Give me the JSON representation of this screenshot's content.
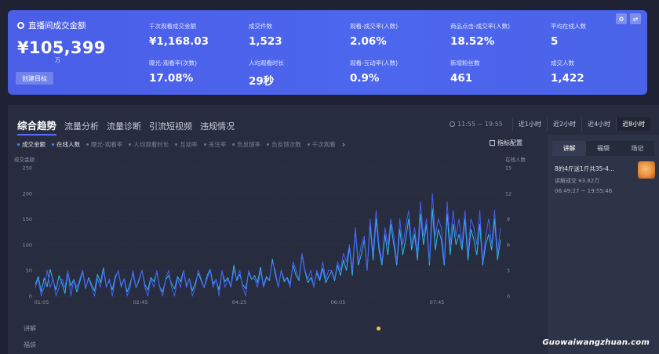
{
  "stats": {
    "main": {
      "label": "直播间成交金额",
      "value": "¥105,399",
      "unit": "万",
      "button": "创建目标"
    },
    "metrics": [
      {
        "label": "千次观看成交金额",
        "value": "¥1,168.03"
      },
      {
        "label": "成交件数",
        "value": "1,523"
      },
      {
        "label": "观看-成交率(人数)",
        "value": "2.06%"
      },
      {
        "label": "商品点击-成交率(人数)",
        "value": "18.52%"
      },
      {
        "label": "平均在线人数",
        "value": "5"
      },
      {
        "label": "曝光-观看率(次数)",
        "value": "17.08%"
      },
      {
        "label": "人均观看时长",
        "value": "29秒"
      },
      {
        "label": "观看-互动率(人数)",
        "value": "0.9%"
      },
      {
        "label": "新增粉丝数",
        "value": "461"
      },
      {
        "label": "成交人数",
        "value": "1,422"
      }
    ],
    "icons": [
      "gear-icon",
      "swap-icon"
    ]
  },
  "tabs": [
    "综合趋势",
    "流量分析",
    "流量诊断",
    "引流短视频",
    "违规情况"
  ],
  "time": {
    "range": "11:55 ~ 19:55",
    "segments": [
      "近1小时",
      "近2小时",
      "近4小时",
      "近8小时"
    ],
    "active": 3
  },
  "chips": [
    {
      "label": "成交金额",
      "on": true
    },
    {
      "label": "在线人数",
      "on": true
    },
    {
      "label": "曝光-观看率",
      "on": false
    },
    {
      "label": "人均观看时长",
      "on": false
    },
    {
      "label": "互动率",
      "on": false
    },
    {
      "label": "关注率",
      "on": false
    },
    {
      "label": "负反馈率",
      "on": false
    },
    {
      "label": "负反馈次数",
      "on": false
    },
    {
      "label": "千次观看",
      "on": false
    }
  ],
  "metric_config": "指标配置",
  "side": {
    "tabs": [
      "讲解",
      "福袋",
      "场记"
    ],
    "item": {
      "title": "8的4斤送1斤共35-4...",
      "gmv": "讲解成交 ¥3.82万",
      "time": "06:49:27 ~ 19:55:48"
    }
  },
  "bottom_labels": [
    "讲解",
    "福袋"
  ],
  "watermark": "Guowaiwangzhuan.com",
  "chart_data": {
    "type": "line",
    "left_axis_label": "成交金额",
    "right_axis_label": "在线人数",
    "y_left_ticks": [
      0,
      50,
      100,
      150,
      200,
      250
    ],
    "y_right_ticks": [
      0,
      3,
      6,
      9,
      12,
      15
    ],
    "x_ticks": [
      "01:05",
      "02:45",
      "04:25",
      "06:05",
      "07:45"
    ],
    "series": [
      {
        "name": "成交金额",
        "color": "#2fb9ee",
        "axis": "left",
        "values": [
          22,
          38,
          8,
          35,
          18,
          52,
          30,
          12,
          40,
          25,
          5,
          45,
          20,
          33,
          8,
          28,
          48,
          15,
          36,
          22,
          10,
          42,
          26,
          55,
          18,
          30,
          12,
          38,
          48,
          20,
          34,
          8,
          25,
          44,
          16,
          30,
          50,
          22,
          12,
          36,
          28,
          46,
          18,
          8,
          32,
          40,
          24,
          14,
          38,
          28,
          50,
          20,
          34,
          10,
          26,
          44,
          30,
          16,
          40,
          52,
          24,
          32,
          12,
          48,
          28,
          36,
          18,
          60,
          30,
          42,
          22,
          14,
          46,
          32,
          40,
          26,
          56,
          20,
          38,
          30,
          72,
          42,
          18,
          50,
          28,
          36,
          24,
          60,
          40,
          30,
          80,
          48,
          26,
          36,
          20,
          45,
          30,
          54,
          26,
          38,
          48,
          30,
          60,
          40,
          70,
          50,
          95,
          40,
          130,
          60,
          80,
          110,
          50,
          140,
          70,
          150,
          90,
          60,
          120,
          80,
          140,
          100,
          60,
          130,
          80,
          110,
          150,
          90,
          120,
          70,
          160,
          100,
          140,
          60,
          170,
          90,
          130,
          110,
          60,
          160,
          80,
          140,
          100,
          120,
          90,
          150,
          70,
          130,
          110,
          80,
          140,
          60,
          100,
          120,
          90,
          150,
          70,
          110
        ]
      },
      {
        "name": "在线人数",
        "color": "#4a5df5",
        "axis": "right",
        "values": [
          1,
          2,
          0,
          1,
          3,
          1,
          2,
          0,
          1,
          2,
          1,
          3,
          0,
          2,
          1,
          2,
          3,
          1,
          2,
          1,
          0,
          2,
          1,
          3,
          1,
          2,
          0,
          2,
          3,
          1,
          2,
          0,
          1,
          3,
          1,
          2,
          3,
          1,
          0,
          2,
          1,
          3,
          1,
          0,
          2,
          3,
          1,
          0,
          2,
          1,
          3,
          1,
          2,
          0,
          1,
          3,
          2,
          1,
          2,
          3,
          1,
          2,
          0,
          3,
          1,
          2,
          1,
          3,
          2,
          3,
          1,
          0,
          3,
          2,
          2,
          1,
          3,
          1,
          2,
          2,
          4,
          3,
          1,
          3,
          2,
          2,
          1,
          4,
          3,
          2,
          5,
          3,
          2,
          3,
          1,
          3,
          2,
          4,
          2,
          3,
          3,
          2,
          4,
          3,
          5,
          4,
          6,
          3,
          8,
          4,
          6,
          7,
          3,
          9,
          5,
          10,
          6,
          4,
          8,
          6,
          9,
          7,
          4,
          9,
          6,
          8,
          10,
          6,
          8,
          5,
          11,
          7,
          9,
          4,
          12,
          7,
          9,
          8,
          4,
          11,
          6,
          10,
          7,
          9,
          6,
          10,
          5,
          9,
          8,
          6,
          10,
          4,
          7,
          9,
          6,
          10,
          5,
          8
        ]
      }
    ]
  }
}
